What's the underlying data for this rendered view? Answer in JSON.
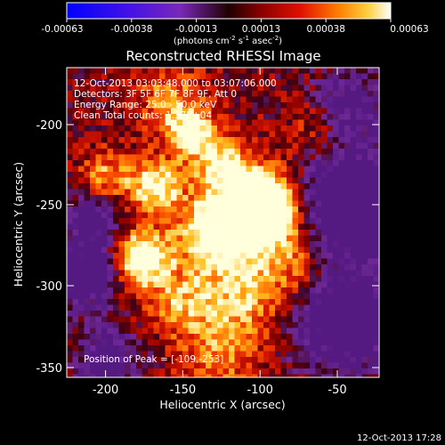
{
  "colorbar": {
    "ticks": [
      "-0.00063",
      "-0.00038",
      "-0.00013",
      "0.00013",
      "0.00038",
      "0.00063"
    ],
    "units_main": "(photons cm",
    "units_exp1": "-2",
    "units_mid": " s",
    "units_exp2": "-1",
    "units_end": " asec",
    "units_exp3": "-2",
    "units_close": ")"
  },
  "plot": {
    "title": "Reconstructed RHESSI Image",
    "xlabel": "Heliocentric X (arcsec)",
    "ylabel": "Heliocentric Y (arcsec)",
    "xticks": [
      "-200",
      "-150",
      "-100",
      "-50"
    ],
    "yticks": [
      "-200",
      "-250",
      "-300",
      "-350"
    ],
    "info_lines": [
      "12-Oct-2013 03:03:48.000 to 03:07:06.000",
      "Detectors: 3F 5F 6F 7F 8F 9F, Att 0",
      "Energy Range: 25.0 - 50.0 keV",
      "Clean     Total counts: 1.37E+04"
    ],
    "peak_text": "Position of Peak = [-109,-253]"
  },
  "footer": {
    "timestamp": "12-Oct-2013 17:28"
  }
}
